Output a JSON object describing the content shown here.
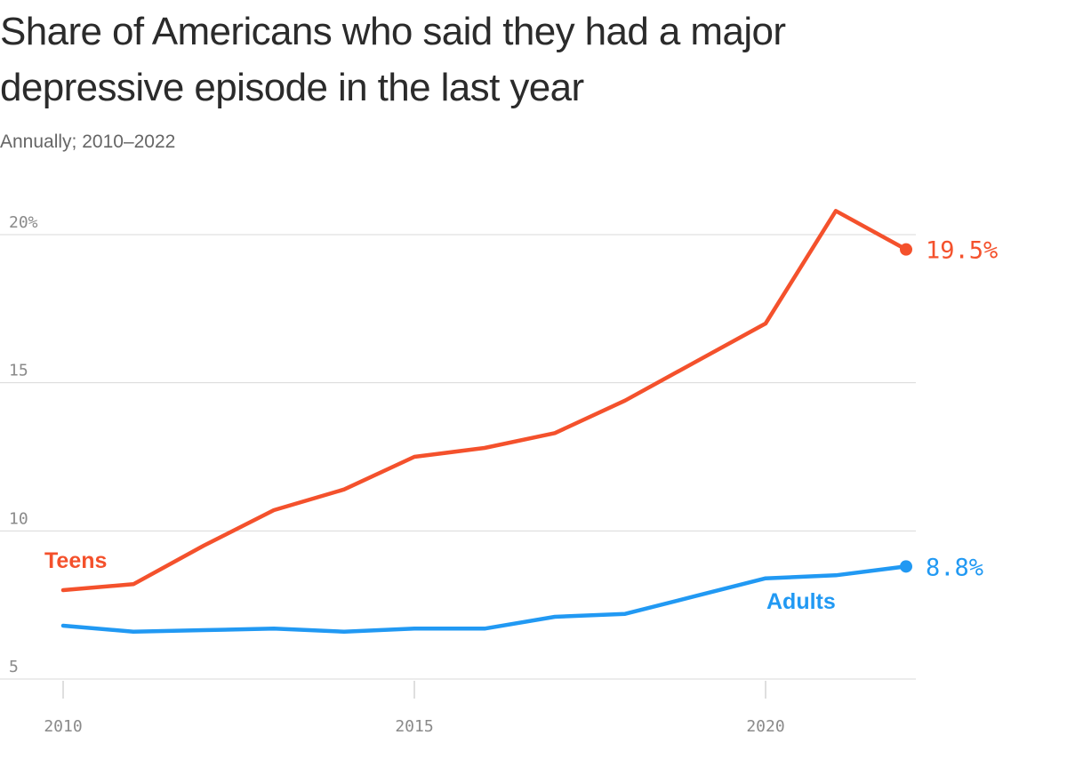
{
  "colors": {
    "teens": "#f4512c",
    "adults": "#2199f3",
    "text": "#333333"
  },
  "chart_data": {
    "type": "line",
    "title": "Share of Americans who said they had a major depressive episode in the last year",
    "subtitle": "Annually; 2010–2022",
    "xlabel": "",
    "ylabel": "",
    "xlim": [
      2010,
      2022
    ],
    "ylim": [
      5,
      20
    ],
    "x_ticks": [
      {
        "value": 2010,
        "label": "2010"
      },
      {
        "value": 2015,
        "label": "2015"
      },
      {
        "value": 2020,
        "label": "2020"
      }
    ],
    "y_ticks": [
      {
        "value": 5,
        "label": "5"
      },
      {
        "value": 10,
        "label": "10"
      },
      {
        "value": 15,
        "label": "15"
      },
      {
        "value": 20,
        "label": "20%"
      }
    ],
    "grid": true,
    "series": [
      {
        "name": "Teens",
        "color_key": "teens",
        "x": [
          2010,
          2011,
          2012,
          2013,
          2014,
          2015,
          2016,
          2017,
          2018,
          2019,
          2020,
          2021,
          2022
        ],
        "values": [
          8.0,
          8.2,
          9.5,
          10.7,
          11.4,
          12.5,
          12.8,
          13.3,
          14.4,
          15.7,
          17.0,
          20.8,
          19.5
        ],
        "end_label": "19.5%"
      },
      {
        "name": "Adults",
        "color_key": "adults",
        "x": [
          2010,
          2011,
          2012,
          2013,
          2014,
          2015,
          2016,
          2017,
          2018,
          2019,
          2020,
          2021,
          2022
        ],
        "values": [
          6.8,
          6.6,
          6.65,
          6.7,
          6.6,
          6.7,
          6.7,
          7.1,
          7.2,
          7.8,
          8.4,
          8.5,
          8.8
        ],
        "end_label": "8.8%"
      }
    ]
  }
}
